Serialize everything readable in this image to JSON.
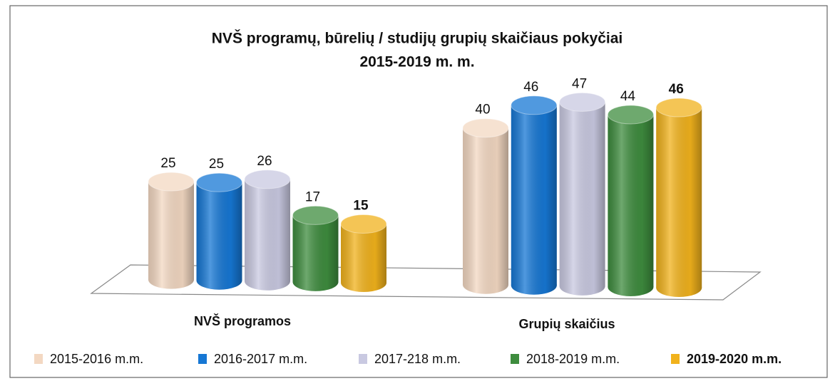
{
  "chart_data": {
    "type": "bar3d",
    "title": [
      "NVŠ programų, būrelių / studijų grupių skaičiaus pokyčiai",
      "2015-2019 m. m."
    ],
    "categories": [
      "NVŠ programos",
      "Grupių skaičius"
    ],
    "series": [
      {
        "name": "2015-2016 m.m.",
        "color": "#f3d8c2",
        "values": [
          25,
          40
        ]
      },
      {
        "name": "2016-2017 m.m.",
        "color": "#1677d4",
        "values": [
          25,
          46
        ]
      },
      {
        "name": "2017-218 m.m.",
        "color": "#c9c9e1",
        "values": [
          26,
          47
        ]
      },
      {
        "name": "2018-2019 m.m.",
        "color": "#3e8c3e",
        "values": [
          17,
          44
        ]
      },
      {
        "name": "2019-2020 m.m.",
        "color": "#f1b21c",
        "values": [
          15,
          46
        ]
      }
    ],
    "legend": "bottom"
  }
}
